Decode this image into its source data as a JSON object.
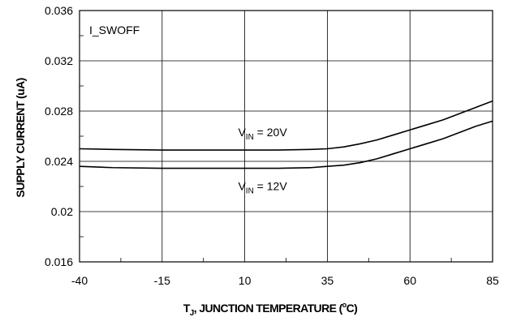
{
  "chart_data": {
    "type": "line",
    "title": "",
    "xlabel": {
      "pre": "T",
      "sub": "J",
      "post": ", JUNCTION TEMPERATURE (",
      "sup": "o",
      "end": "C)"
    },
    "ylabel": "SUPPLY CURRENT (uA)",
    "xlim": [
      -40,
      85
    ],
    "ylim": [
      0.016,
      0.036
    ],
    "x_ticks": [
      "-40",
      "-15",
      "10",
      "35",
      "60",
      "85"
    ],
    "y_ticks": [
      "0.016",
      "0.02",
      "0.024",
      "0.028",
      "0.032",
      "0.036"
    ],
    "grid": true,
    "legend": "none",
    "inset_label": "I_SWOFF",
    "series": [
      {
        "label": {
          "pre": "V",
          "sub": "IN",
          "post": " = 20V"
        },
        "label_pos": {
          "x": 8,
          "y": 0.026
        },
        "color": "#000000",
        "points": [
          [
            -40,
            0.025
          ],
          [
            -30,
            0.02495
          ],
          [
            -15,
            0.0249
          ],
          [
            0,
            0.0249
          ],
          [
            10,
            0.0249
          ],
          [
            20,
            0.0249
          ],
          [
            30,
            0.02495
          ],
          [
            35,
            0.025
          ],
          [
            40,
            0.02515
          ],
          [
            45,
            0.0254
          ],
          [
            50,
            0.0257
          ],
          [
            55,
            0.0261
          ],
          [
            60,
            0.0265
          ],
          [
            65,
            0.0269
          ],
          [
            70,
            0.0273
          ],
          [
            75,
            0.0278
          ],
          [
            80,
            0.0283
          ],
          [
            85,
            0.0288
          ]
        ]
      },
      {
        "label": {
          "pre": "V",
          "sub": "IN",
          "post": " = 12V"
        },
        "label_pos": {
          "x": 8,
          "y": 0.0217
        },
        "color": "#000000",
        "points": [
          [
            -40,
            0.0236
          ],
          [
            -30,
            0.0235
          ],
          [
            -15,
            0.02345
          ],
          [
            0,
            0.02345
          ],
          [
            10,
            0.02345
          ],
          [
            20,
            0.02345
          ],
          [
            30,
            0.0235
          ],
          [
            35,
            0.0236
          ],
          [
            40,
            0.0237
          ],
          [
            45,
            0.0239
          ],
          [
            50,
            0.0242
          ],
          [
            55,
            0.0246
          ],
          [
            60,
            0.025
          ],
          [
            65,
            0.0254
          ],
          [
            70,
            0.0258
          ],
          [
            75,
            0.0263
          ],
          [
            80,
            0.0268
          ],
          [
            85,
            0.0272
          ]
        ]
      }
    ]
  }
}
